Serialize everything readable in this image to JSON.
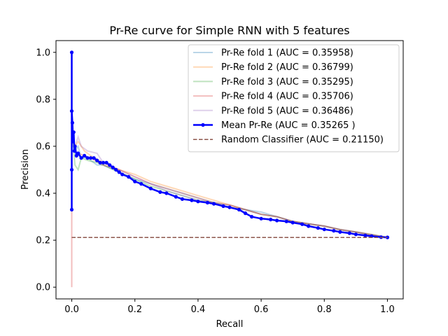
{
  "chart_data": {
    "type": "line",
    "title": "Pr-Re curve for Simple RNN with 5 features",
    "xlabel": "Recall",
    "ylabel": "Precision",
    "xlim": [
      -0.05,
      1.05
    ],
    "ylim": [
      -0.05,
      1.05
    ],
    "xticks": [
      "0.0",
      "0.2",
      "0.4",
      "0.6",
      "0.8",
      "1.0"
    ],
    "yticks": [
      "0.0",
      "0.2",
      "0.4",
      "0.6",
      "0.8",
      "1.0"
    ],
    "grid": false,
    "legend_position": "top-right",
    "series": [
      {
        "name": "Pr-Re fold 1 (AUC = 0.35958)",
        "color": "#1f77b4",
        "style": "faint",
        "x": [
          0.0,
          0.0,
          0.005,
          0.01,
          0.02,
          0.03,
          0.05,
          0.08,
          0.1,
          0.15,
          0.2,
          0.25,
          0.3,
          0.35,
          0.4,
          0.45,
          0.5,
          0.55,
          0.6,
          0.65,
          0.7,
          0.75,
          0.8,
          0.85,
          0.9,
          0.95,
          1.0
        ],
        "y": [
          0.35,
          0.72,
          0.62,
          0.58,
          0.6,
          0.55,
          0.55,
          0.52,
          0.52,
          0.49,
          0.46,
          0.44,
          0.42,
          0.4,
          0.38,
          0.36,
          0.35,
          0.33,
          0.32,
          0.3,
          0.28,
          0.27,
          0.26,
          0.245,
          0.235,
          0.225,
          0.212
        ]
      },
      {
        "name": "Pr-Re fold 2 (AUC = 0.36799)",
        "color": "#ff7f0e",
        "style": "faint",
        "x": [
          0.0,
          0.0,
          0.005,
          0.01,
          0.02,
          0.04,
          0.06,
          0.1,
          0.15,
          0.2,
          0.25,
          0.3,
          0.35,
          0.4,
          0.45,
          0.5,
          0.55,
          0.6,
          0.65,
          0.7,
          0.75,
          0.8,
          0.85,
          0.9,
          0.95,
          1.0
        ],
        "y": [
          0.33,
          0.7,
          0.63,
          0.6,
          0.62,
          0.58,
          0.56,
          0.53,
          0.5,
          0.48,
          0.45,
          0.43,
          0.41,
          0.39,
          0.37,
          0.35,
          0.33,
          0.31,
          0.3,
          0.28,
          0.27,
          0.26,
          0.245,
          0.235,
          0.225,
          0.212
        ]
      },
      {
        "name": "Pr-Re fold 3 (AUC = 0.35295)",
        "color": "#2ca02c",
        "style": "faint",
        "x": [
          0.0,
          0.0,
          0.005,
          0.01,
          0.02,
          0.03,
          0.05,
          0.08,
          0.1,
          0.15,
          0.2,
          0.25,
          0.3,
          0.35,
          0.4,
          0.45,
          0.5,
          0.55,
          0.6,
          0.65,
          0.7,
          0.75,
          0.8,
          0.85,
          0.9,
          0.95,
          1.0
        ],
        "y": [
          0.35,
          0.68,
          0.6,
          0.52,
          0.5,
          0.55,
          0.54,
          0.53,
          0.52,
          0.49,
          0.46,
          0.43,
          0.41,
          0.39,
          0.37,
          0.36,
          0.34,
          0.33,
          0.31,
          0.3,
          0.28,
          0.27,
          0.26,
          0.245,
          0.235,
          0.222,
          0.212
        ]
      },
      {
        "name": "Pr-Re fold 4 (AUC = 0.35706)",
        "color": "#d62728",
        "style": "faint",
        "x": [
          0.0,
          0.0,
          0.0,
          0.005,
          0.01,
          0.02,
          0.04,
          0.06,
          0.1,
          0.15,
          0.2,
          0.25,
          0.3,
          0.35,
          0.4,
          0.45,
          0.5,
          0.55,
          0.6,
          0.65,
          0.7,
          0.75,
          0.8,
          0.85,
          0.9,
          0.95,
          1.0
        ],
        "y": [
          0.0,
          0.45,
          0.75,
          0.62,
          0.58,
          0.57,
          0.56,
          0.55,
          0.52,
          0.5,
          0.47,
          0.44,
          0.42,
          0.4,
          0.38,
          0.36,
          0.35,
          0.33,
          0.31,
          0.3,
          0.28,
          0.27,
          0.26,
          0.245,
          0.235,
          0.222,
          0.212
        ]
      },
      {
        "name": "Pr-Re fold 5 (AUC = 0.36486)",
        "color": "#9467bd",
        "style": "faint",
        "x": [
          0.0,
          0.0,
          0.005,
          0.01,
          0.02,
          0.03,
          0.05,
          0.08,
          0.1,
          0.15,
          0.2,
          0.25,
          0.3,
          0.35,
          0.4,
          0.45,
          0.5,
          0.55,
          0.6,
          0.65,
          0.7,
          0.75,
          0.8,
          0.85,
          0.9,
          0.95,
          1.0
        ],
        "y": [
          0.34,
          0.76,
          0.66,
          0.6,
          0.64,
          0.6,
          0.58,
          0.57,
          0.53,
          0.5,
          0.47,
          0.44,
          0.41,
          0.39,
          0.37,
          0.36,
          0.34,
          0.33,
          0.31,
          0.3,
          0.28,
          0.27,
          0.26,
          0.245,
          0.235,
          0.222,
          0.212
        ]
      },
      {
        "name": "Mean Pr-Re (AUC = 0.35265 )",
        "color": "#0000ff",
        "style": "mean",
        "x": [
          0.0,
          0.0,
          0.0,
          0.0,
          0.002,
          0.004,
          0.006,
          0.008,
          0.01,
          0.015,
          0.02,
          0.03,
          0.04,
          0.05,
          0.06,
          0.07,
          0.08,
          0.09,
          0.1,
          0.11,
          0.12,
          0.13,
          0.14,
          0.15,
          0.16,
          0.18,
          0.2,
          0.22,
          0.25,
          0.28,
          0.3,
          0.33,
          0.35,
          0.38,
          0.4,
          0.43,
          0.45,
          0.48,
          0.5,
          0.53,
          0.55,
          0.57,
          0.6,
          0.63,
          0.65,
          0.68,
          0.7,
          0.73,
          0.75,
          0.78,
          0.8,
          0.83,
          0.85,
          0.88,
          0.9,
          0.93,
          0.95,
          0.98,
          1.0
        ],
        "y": [
          0.33,
          1.0,
          0.5,
          0.75,
          0.7,
          0.62,
          0.66,
          0.58,
          0.6,
          0.56,
          0.57,
          0.55,
          0.56,
          0.55,
          0.55,
          0.55,
          0.54,
          0.53,
          0.53,
          0.53,
          0.52,
          0.51,
          0.5,
          0.49,
          0.48,
          0.47,
          0.45,
          0.44,
          0.42,
          0.405,
          0.4,
          0.385,
          0.375,
          0.37,
          0.365,
          0.36,
          0.355,
          0.345,
          0.34,
          0.33,
          0.315,
          0.3,
          0.292,
          0.288,
          0.284,
          0.28,
          0.275,
          0.268,
          0.26,
          0.252,
          0.246,
          0.24,
          0.235,
          0.23,
          0.225,
          0.22,
          0.217,
          0.213,
          0.212
        ]
      },
      {
        "name": "Random Classifier (AUC = 0.21150)",
        "color": "#8c564b",
        "style": "dashed",
        "x": [
          0.0,
          1.0
        ],
        "y": [
          0.2115,
          0.2115
        ]
      }
    ]
  }
}
